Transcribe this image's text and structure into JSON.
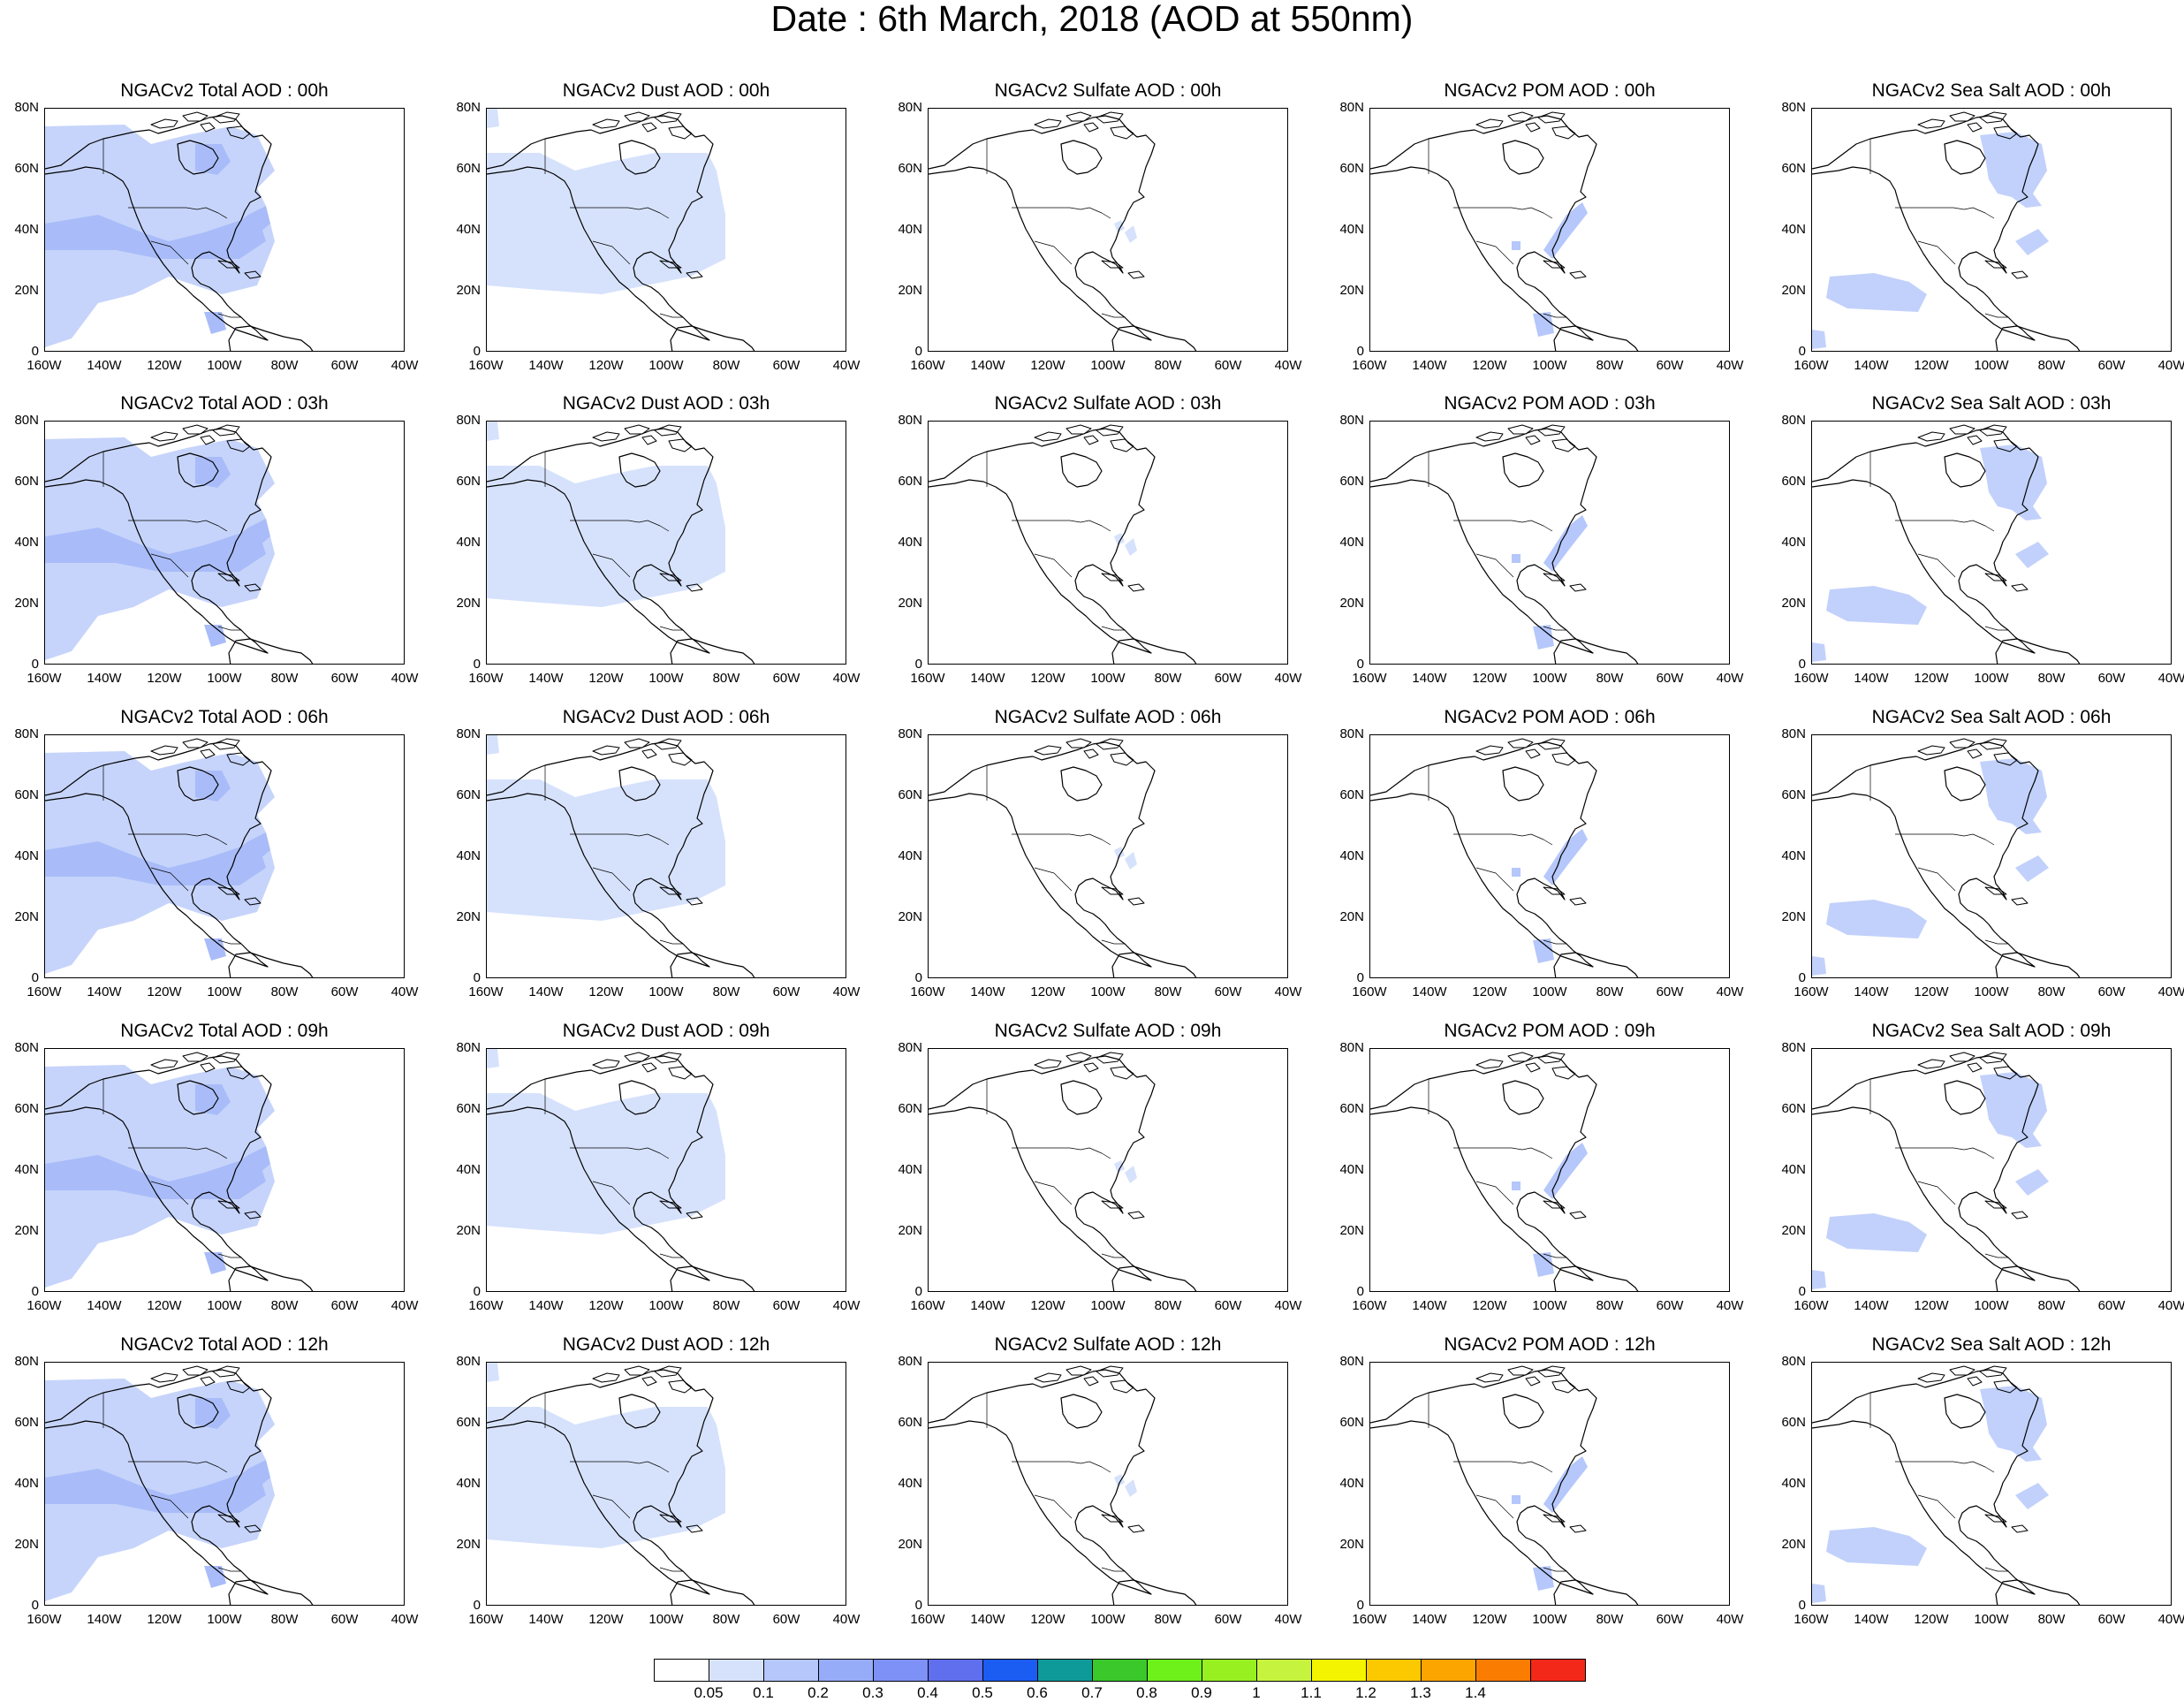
{
  "title": "Date : 6th March, 2018 (AOD at 550nm)",
  "x_ticks": [
    "160W",
    "140W",
    "120W",
    "100W",
    "80W",
    "60W",
    "40W"
  ],
  "y_ticks": [
    "80N",
    "60N",
    "40N",
    "20N",
    "0"
  ],
  "panels": [
    [
      "NGACv2 Total AOD : 00h",
      "NGACv2 Dust AOD : 00h",
      "NGACv2 Sulfate AOD : 00h",
      "NGACv2 POM AOD : 00h",
      "NGACv2 Sea Salt AOD : 00h"
    ],
    [
      "NGACv2 Total AOD : 03h",
      "NGACv2 Dust AOD : 03h",
      "NGACv2 Sulfate AOD : 03h",
      "NGACv2 POM AOD : 03h",
      "NGACv2 Sea Salt AOD : 03h"
    ],
    [
      "NGACv2 Total AOD : 06h",
      "NGACv2 Dust AOD : 06h",
      "NGACv2 Sulfate AOD : 06h",
      "NGACv2 POM AOD : 06h",
      "NGACv2 Sea Salt AOD : 06h"
    ],
    [
      "NGACv2 Total AOD : 09h",
      "NGACv2 Dust AOD : 09h",
      "NGACv2 Sulfate AOD : 09h",
      "NGACv2 POM AOD : 09h",
      "NGACv2 Sea Salt  AOD : 09h"
    ],
    [
      "NGACv2 Total AOD  : 12h",
      "NGACv2 Dust AOD : 12h",
      "NGACv2 Sulfate AOD : 12h",
      "NGACv2 POM  AOD : 12h",
      "NGACv2 Sea Salt  AOD : 12h"
    ]
  ],
  "colorbar": {
    "labels": [
      "0.05",
      "0.1",
      "0.2",
      "0.3",
      "0.4",
      "0.5",
      "0.6",
      "0.7",
      "0.8",
      "0.9",
      "1",
      "1.1",
      "1.2",
      "1.3",
      "1.4"
    ],
    "colors": [
      "#ffffff",
      "#d6e2fc",
      "#b5c7fb",
      "#97acf9",
      "#7e91f6",
      "#5f6fee",
      "#1b5cf3",
      "#0f9a9a",
      "#3ac82a",
      "#6ef01a",
      "#98f020",
      "#c6f43e",
      "#f4f400",
      "#fcc800",
      "#fca400",
      "#fa7c00",
      "#f42818"
    ]
  },
  "aerosol_fill": {
    "total": "#c6d4fb",
    "total_dark": "#a9bcf9",
    "dust": "#d6e2fc",
    "sulfate": "#d6e2fc",
    "pom": "#b5c7fb",
    "seasalt": "#c2d1fb"
  }
}
